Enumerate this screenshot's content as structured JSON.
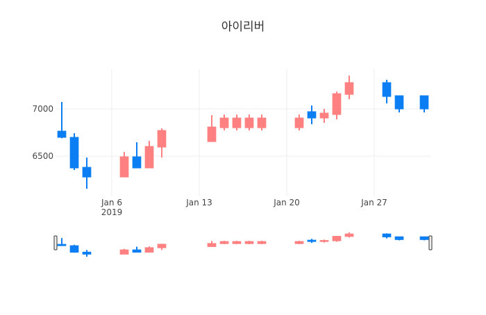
{
  "chart_data": {
    "type": "candlestick",
    "title": "아이리버",
    "x": [
      "2019-01-02",
      "2019-01-03",
      "2019-01-04",
      "2019-01-07",
      "2019-01-08",
      "2019-01-09",
      "2019-01-10",
      "2019-01-14",
      "2019-01-15",
      "2019-01-16",
      "2019-01-17",
      "2019-01-18",
      "2019-01-21",
      "2019-01-22",
      "2019-01-23",
      "2019-01-24",
      "2019-01-25",
      "2019-01-28",
      "2019-01-29",
      "2019-01-31"
    ],
    "open": [
      6765,
      6699,
      6382,
      6279,
      6493,
      6375,
      6596,
      6654,
      6801,
      6801,
      6801,
      6801,
      6801,
      6971,
      6904,
      6941,
      7154,
      7279,
      7140,
      7140
    ],
    "high": [
      7074,
      6743,
      6485,
      6544,
      6647,
      6662,
      6794,
      6934,
      6941,
      6941,
      6941,
      6941,
      6941,
      7037,
      7000,
      7184,
      7353,
      7309,
      7140,
      7140
    ],
    "low": [
      6690,
      6353,
      6154,
      6279,
      6375,
      6375,
      6485,
      6654,
      6772,
      6772,
      6772,
      6772,
      6772,
      6838,
      6853,
      6890,
      7103,
      7059,
      6963,
      6963
    ],
    "close": [
      6699,
      6375,
      6279,
      6493,
      6375,
      6603,
      6772,
      6809,
      6904,
      6904,
      6904,
      6904,
      6904,
      6904,
      6956,
      7162,
      7279,
      7132,
      7000,
      7000
    ],
    "increasing_color": "#ff8080",
    "decreasing_color": "#0a7ef2",
    "xlim": [
      "2019-01-01 12:00",
      "2019-01-31 12:00"
    ],
    "xticks": [
      {
        "value": "2019-01-06",
        "label": "Jan 6",
        "sublabel": "2019"
      },
      {
        "value": "2019-01-13",
        "label": "Jan 13"
      },
      {
        "value": "2019-01-20",
        "label": "Jan 20"
      },
      {
        "value": "2019-01-27",
        "label": "Jan 27"
      }
    ],
    "ylim": [
      6074,
      7419
    ],
    "yticks": [
      6500,
      7000
    ],
    "grid": true,
    "rangeslider": true
  }
}
